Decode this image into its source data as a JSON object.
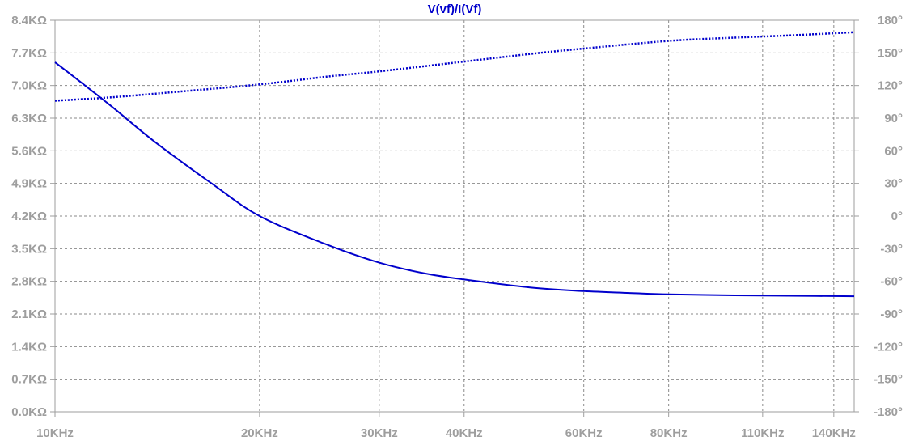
{
  "chart_data": {
    "type": "line",
    "title": "V(vf)/I(Vf)",
    "x_scale": "log",
    "xlim": [
      10,
      150
    ],
    "x_unit": "KHz",
    "x_ticks": [
      10,
      20,
      30,
      40,
      60,
      80,
      110,
      140
    ],
    "x_tick_labels": [
      "10KHz",
      "20KHz",
      "30KHz",
      "40KHz",
      "60KHz",
      "80KHz",
      "110KHz",
      "140KHz"
    ],
    "y_left": {
      "ylim": [
        0,
        8.4
      ],
      "unit": "KΩ",
      "ticks": [
        0,
        0.7,
        1.4,
        2.1,
        2.8,
        3.5,
        4.2,
        4.9,
        5.6,
        6.3,
        7.0,
        7.7,
        8.4
      ],
      "tick_labels": [
        "0.0KΩ",
        "0.7KΩ",
        "1.4KΩ",
        "2.1KΩ",
        "2.8KΩ",
        "3.5KΩ",
        "4.2KΩ",
        "4.9KΩ",
        "5.6KΩ",
        "6.3KΩ",
        "7.0KΩ",
        "7.7KΩ",
        "8.4KΩ"
      ]
    },
    "y_right": {
      "ylim": [
        -180,
        180
      ],
      "unit": "°",
      "ticks": [
        -180,
        -150,
        -120,
        -90,
        -60,
        -30,
        0,
        30,
        60,
        90,
        120,
        150,
        180
      ],
      "tick_labels": [
        "-180°",
        "-150°",
        "-120°",
        "-90°",
        "-60°",
        "-30°",
        "0°",
        "30°",
        "60°",
        "90°",
        "120°",
        "150°",
        "180°"
      ]
    },
    "grid": true,
    "series": [
      {
        "style": "solid",
        "color": "#0000cc",
        "axis": "left",
        "x": [
          10,
          12,
          14,
          17,
          20,
          25,
          30,
          35,
          40,
          50,
          60,
          70,
          80,
          100,
          120,
          150
        ],
        "y": [
          7.5,
          6.6,
          5.8,
          4.9,
          4.2,
          3.6,
          3.2,
          2.97,
          2.84,
          2.67,
          2.59,
          2.55,
          2.52,
          2.5,
          2.49,
          2.48
        ]
      },
      {
        "style": "dotted",
        "color": "#0000cc",
        "axis": "right",
        "x": [
          10,
          12,
          15,
          20,
          25,
          30,
          40,
          50,
          60,
          80,
          100,
          120,
          150
        ],
        "y": [
          106,
          109,
          114,
          121,
          128,
          133,
          142,
          149,
          154,
          161,
          164,
          166,
          169
        ]
      }
    ]
  }
}
